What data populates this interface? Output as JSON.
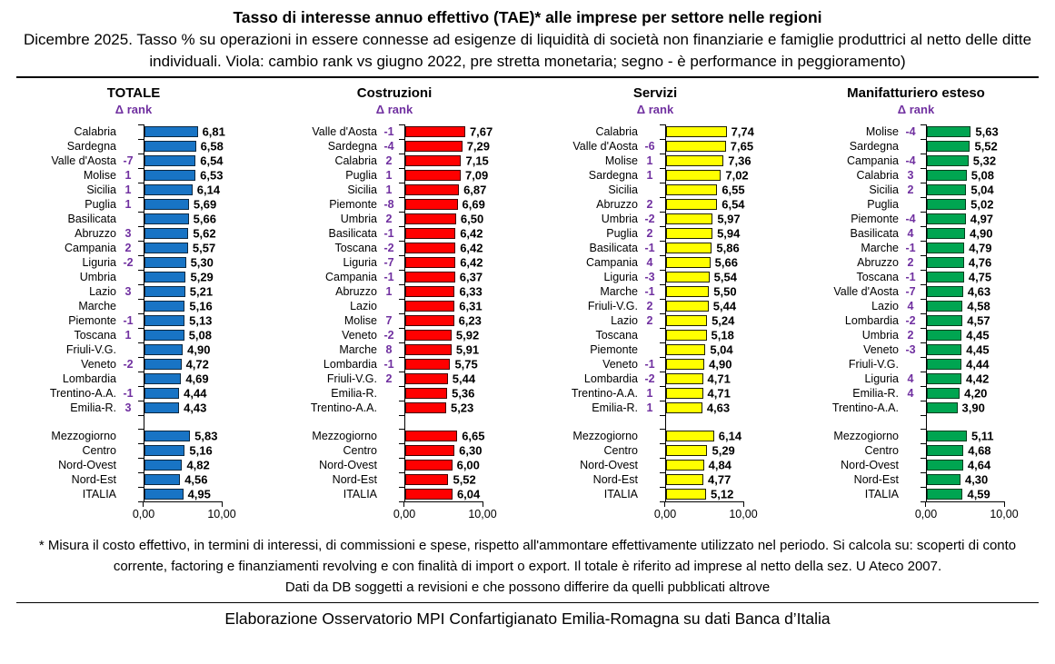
{
  "header": {
    "title": "Tasso di interesse annuo effettivo (TAE)* alle imprese per settore nelle regioni",
    "subtitle": "Dicembre 2025. Tasso % su operazioni in essere connesse ad esigenze di liquidità di società non finanziarie e famiglie produttrici al netto delle ditte individuali. Viola: cambio rank vs giugno 2022, pre stretta monetaria; segno - è performance in peggioramento)"
  },
  "colors": {
    "rank_purple": "#7030A0",
    "axis_black": "#000000"
  },
  "chart_data": [
    {
      "type": "bar",
      "title": "TOTALE",
      "delta_label": "Δ rank",
      "bar_color": "#1874C5",
      "bar_border": "#0C2840",
      "xlim": [
        0,
        10
      ],
      "x_ticks": [
        "0,00",
        "10,00"
      ],
      "regions": [
        {
          "region": "Calabria",
          "delta": "",
          "value": 6.81
        },
        {
          "region": "Sardegna",
          "delta": "",
          "value": 6.58
        },
        {
          "region": "Valle d'Aosta",
          "delta": "-7",
          "value": 6.54
        },
        {
          "region": "Molise",
          "delta": "1",
          "value": 6.53
        },
        {
          "region": "Sicilia",
          "delta": "1",
          "value": 6.14
        },
        {
          "region": "Puglia",
          "delta": "1",
          "value": 5.69
        },
        {
          "region": "Basilicata",
          "delta": "",
          "value": 5.66
        },
        {
          "region": "Abruzzo",
          "delta": "3",
          "value": 5.62
        },
        {
          "region": "Campania",
          "delta": "2",
          "value": 5.57
        },
        {
          "region": "Liguria",
          "delta": "-2",
          "value": 5.3
        },
        {
          "region": "Umbria",
          "delta": "",
          "value": 5.29
        },
        {
          "region": "Lazio",
          "delta": "3",
          "value": 5.21
        },
        {
          "region": "Marche",
          "delta": "",
          "value": 5.16
        },
        {
          "region": "Piemonte",
          "delta": "-1",
          "value": 5.13
        },
        {
          "region": "Toscana",
          "delta": "1",
          "value": 5.08
        },
        {
          "region": "Friuli-V.G.",
          "delta": "",
          "value": 4.9
        },
        {
          "region": "Veneto",
          "delta": "-2",
          "value": 4.72
        },
        {
          "region": "Lombardia",
          "delta": "",
          "value": 4.69
        },
        {
          "region": "Trentino-A.A.",
          "delta": "-1",
          "value": 4.44
        },
        {
          "region": "Emilia-R.",
          "delta": "3",
          "value": 4.43
        }
      ],
      "aggregates": [
        {
          "region": "Mezzogiorno",
          "delta": "",
          "value": 5.83
        },
        {
          "region": "Centro",
          "delta": "",
          "value": 5.16
        },
        {
          "region": "Nord-Ovest",
          "delta": "",
          "value": 4.82
        },
        {
          "region": "Nord-Est",
          "delta": "",
          "value": 4.56
        },
        {
          "region": "ITALIA",
          "delta": "",
          "value": 4.95
        }
      ]
    },
    {
      "type": "bar",
      "title": "Costruzioni",
      "delta_label": "Δ rank",
      "bar_color": "#FF0000",
      "bar_border": "#400000",
      "xlim": [
        0,
        10
      ],
      "x_ticks": [
        "0,00",
        "10,00"
      ],
      "regions": [
        {
          "region": "Valle d'Aosta",
          "delta": "-1",
          "value": 7.67
        },
        {
          "region": "Sardegna",
          "delta": "-4",
          "value": 7.29
        },
        {
          "region": "Calabria",
          "delta": "2",
          "value": 7.15
        },
        {
          "region": "Puglia",
          "delta": "1",
          "value": 7.09
        },
        {
          "region": "Sicilia",
          "delta": "1",
          "value": 6.87
        },
        {
          "region": "Piemonte",
          "delta": "-8",
          "value": 6.69
        },
        {
          "region": "Umbria",
          "delta": "2",
          "value": 6.5
        },
        {
          "region": "Basilicata",
          "delta": "-1",
          "value": 6.42
        },
        {
          "region": "Toscana",
          "delta": "-2",
          "value": 6.42
        },
        {
          "region": "Liguria",
          "delta": "-7",
          "value": 6.42
        },
        {
          "region": "Campania",
          "delta": "-1",
          "value": 6.37
        },
        {
          "region": "Abruzzo",
          "delta": "1",
          "value": 6.33
        },
        {
          "region": "Lazio",
          "delta": "",
          "value": 6.31
        },
        {
          "region": "Molise",
          "delta": "7",
          "value": 6.23
        },
        {
          "region": "Veneto",
          "delta": "-2",
          "value": 5.92
        },
        {
          "region": "Marche",
          "delta": "8",
          "value": 5.91
        },
        {
          "region": "Lombardia",
          "delta": "-1",
          "value": 5.75
        },
        {
          "region": "Friuli-V.G.",
          "delta": "2",
          "value": 5.44
        },
        {
          "region": "Emilia-R.",
          "delta": "",
          "value": 5.36
        },
        {
          "region": "Trentino-A.A.",
          "delta": "",
          "value": 5.23
        }
      ],
      "aggregates": [
        {
          "region": "Mezzogiorno",
          "delta": "",
          "value": 6.65
        },
        {
          "region": "Centro",
          "delta": "",
          "value": 6.3
        },
        {
          "region": "Nord-Ovest",
          "delta": "",
          "value": 6.0
        },
        {
          "region": "Nord-Est",
          "delta": "",
          "value": 5.52
        },
        {
          "region": "ITALIA",
          "delta": "",
          "value": 6.04
        }
      ]
    },
    {
      "type": "bar",
      "title": "Servizi",
      "delta_label": "Δ rank",
      "bar_color": "#FFFF00",
      "bar_border": "#202000",
      "xlim": [
        0,
        10
      ],
      "x_ticks": [
        "0,00",
        "10,00"
      ],
      "regions": [
        {
          "region": "Calabria",
          "delta": "",
          "value": 7.74
        },
        {
          "region": "Valle d'Aosta",
          "delta": "-6",
          "value": 7.65
        },
        {
          "region": "Molise",
          "delta": "1",
          "value": 7.36
        },
        {
          "region": "Sardegna",
          "delta": "1",
          "value": 7.02
        },
        {
          "region": "Sicilia",
          "delta": "",
          "value": 6.55
        },
        {
          "region": "Abruzzo",
          "delta": "2",
          "value": 6.54
        },
        {
          "region": "Umbria",
          "delta": "-2",
          "value": 5.97
        },
        {
          "region": "Puglia",
          "delta": "2",
          "value": 5.94
        },
        {
          "region": "Basilicata",
          "delta": "-1",
          "value": 5.86
        },
        {
          "region": "Campania",
          "delta": "4",
          "value": 5.66
        },
        {
          "region": "Liguria",
          "delta": "-3",
          "value": 5.54
        },
        {
          "region": "Marche",
          "delta": "-1",
          "value": 5.5
        },
        {
          "region": "Friuli-V.G.",
          "delta": "2",
          "value": 5.44
        },
        {
          "region": "Lazio",
          "delta": "2",
          "value": 5.24
        },
        {
          "region": "Toscana",
          "delta": "",
          "value": 5.18
        },
        {
          "region": "Piemonte",
          "delta": "",
          "value": 5.04
        },
        {
          "region": "Veneto",
          "delta": "-1",
          "value": 4.9
        },
        {
          "region": "Lombardia",
          "delta": "-2",
          "value": 4.71
        },
        {
          "region": "Trentino-A.A.",
          "delta": "1",
          "value": 4.71
        },
        {
          "region": "Emilia-R.",
          "delta": "1",
          "value": 4.63
        }
      ],
      "aggregates": [
        {
          "region": "Mezzogiorno",
          "delta": "",
          "value": 6.14
        },
        {
          "region": "Centro",
          "delta": "",
          "value": 5.29
        },
        {
          "region": "Nord-Ovest",
          "delta": "",
          "value": 4.84
        },
        {
          "region": "Nord-Est",
          "delta": "",
          "value": 4.77
        },
        {
          "region": "ITALIA",
          "delta": "",
          "value": 5.12
        }
      ]
    },
    {
      "type": "bar",
      "title": "Manifatturiero esteso",
      "delta_label": "Δ rank",
      "bar_color": "#00A551",
      "bar_border": "#003D1E",
      "xlim": [
        0,
        10
      ],
      "x_ticks": [
        "0,00",
        "10,00"
      ],
      "regions": [
        {
          "region": "Molise",
          "delta": "-4",
          "value": 5.63
        },
        {
          "region": "Sardegna",
          "delta": "",
          "value": 5.52
        },
        {
          "region": "Campania",
          "delta": "-4",
          "value": 5.32
        },
        {
          "region": "Calabria",
          "delta": "3",
          "value": 5.08
        },
        {
          "region": "Sicilia",
          "delta": "2",
          "value": 5.04
        },
        {
          "region": "Puglia",
          "delta": "",
          "value": 5.02
        },
        {
          "region": "Piemonte",
          "delta": "-4",
          "value": 4.97
        },
        {
          "region": "Basilicata",
          "delta": "4",
          "value": 4.9
        },
        {
          "region": "Marche",
          "delta": "-1",
          "value": 4.79
        },
        {
          "region": "Abruzzo",
          "delta": "2",
          "value": 4.76
        },
        {
          "region": "Toscana",
          "delta": "-1",
          "value": 4.75
        },
        {
          "region": "Valle d'Aosta",
          "delta": "-7",
          "value": 4.63
        },
        {
          "region": "Lazio",
          "delta": "4",
          "value": 4.58
        },
        {
          "region": "Lombardia",
          "delta": "-2",
          "value": 4.57
        },
        {
          "region": "Umbria",
          "delta": "2",
          "value": 4.45
        },
        {
          "region": "Veneto",
          "delta": "-3",
          "value": 4.45
        },
        {
          "region": "Friuli-V.G.",
          "delta": "",
          "value": 4.44
        },
        {
          "region": "Liguria",
          "delta": "4",
          "value": 4.42
        },
        {
          "region": "Emilia-R.",
          "delta": "4",
          "value": 4.2
        },
        {
          "region": "Trentino-A.A.",
          "delta": "",
          "value": 3.9
        }
      ],
      "aggregates": [
        {
          "region": "Mezzogiorno",
          "delta": "",
          "value": 5.11
        },
        {
          "region": "Centro",
          "delta": "",
          "value": 4.68
        },
        {
          "region": "Nord-Ovest",
          "delta": "",
          "value": 4.64
        },
        {
          "region": "Nord-Est",
          "delta": "",
          "value": 4.3
        },
        {
          "region": "ITALIA",
          "delta": "",
          "value": 4.59
        }
      ]
    }
  ],
  "footer": {
    "note1": "* Misura il costo effettivo, in termini di interessi, di commissioni e spese, rispetto all'ammontare effettivamente utilizzato nel periodo. Si calcola su: scoperti di conto corrente, factoring e finanziamenti revolving e con finalità di import o export. Il totale è riferito ad imprese al netto della sez. U Ateco 2007.",
    "note2": "Dati da DB soggetti a revisioni e che possono differire da quelli pubblicati altrove",
    "source": "Elaborazione Osservatorio MPI Confartigianato Emilia-Romagna su dati Banca d’Italia"
  }
}
